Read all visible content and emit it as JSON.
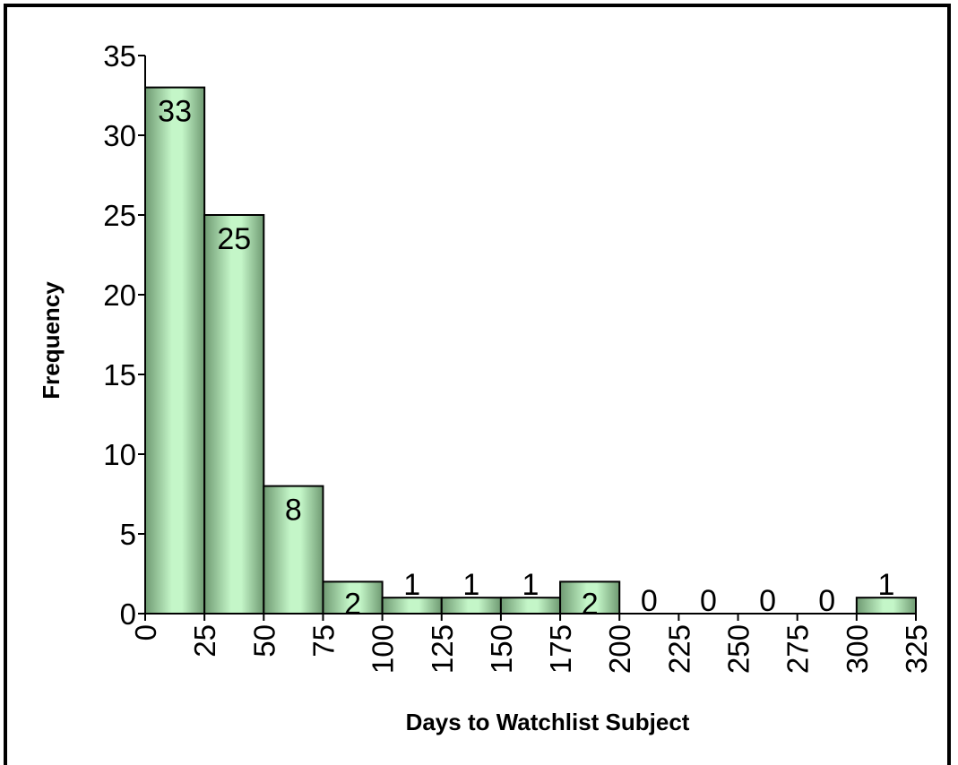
{
  "chart_data": {
    "type": "bar",
    "title": "",
    "xlabel": "Days to Watchlist Subject",
    "ylabel": "Frequency",
    "x_ticks": [
      "0",
      "25",
      "50",
      "75",
      "100",
      "125",
      "150",
      "175",
      "200",
      "225",
      "250",
      "275",
      "300",
      "325"
    ],
    "y_ticks": [
      "0",
      "5",
      "10",
      "15",
      "20",
      "25",
      "30",
      "35"
    ],
    "ylim": [
      0,
      35
    ],
    "xlim": [
      0,
      325
    ],
    "bins": [
      [
        0,
        25
      ],
      [
        25,
        50
      ],
      [
        50,
        75
      ],
      [
        75,
        100
      ],
      [
        100,
        125
      ],
      [
        125,
        150
      ],
      [
        150,
        175
      ],
      [
        175,
        200
      ],
      [
        200,
        225
      ],
      [
        225,
        250
      ],
      [
        250,
        275
      ],
      [
        275,
        300
      ],
      [
        300,
        325
      ]
    ],
    "values": [
      33,
      25,
      8,
      2,
      1,
      1,
      1,
      2,
      0,
      0,
      0,
      0,
      1
    ],
    "data_labels": [
      "33",
      "25",
      "8",
      "2",
      "1",
      "1",
      "1",
      "2",
      "0",
      "0",
      "0",
      "0",
      "1"
    ],
    "grid": false,
    "legend": "none",
    "bar_color": "#b9f0bf"
  }
}
